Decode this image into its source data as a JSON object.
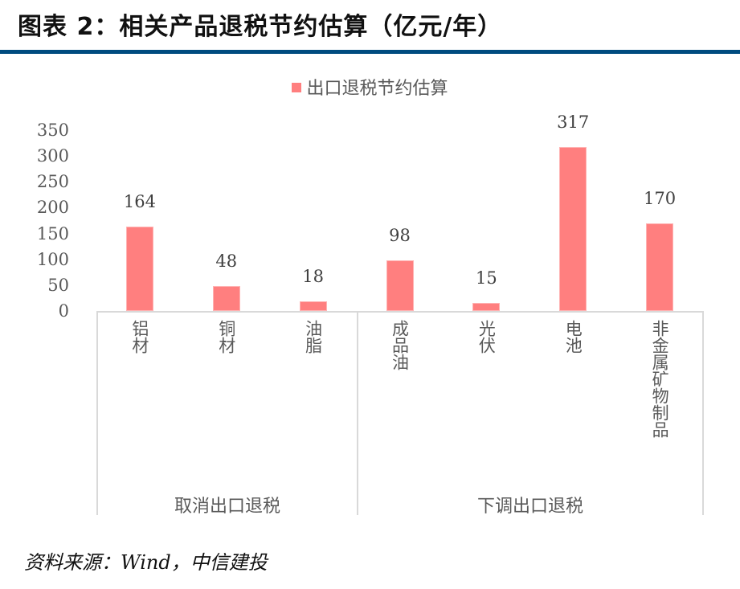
{
  "header": {
    "title": "图表 2：相关产品退税节约估算（亿元/年）",
    "rule_color": "#004b7f"
  },
  "legend": {
    "label": "出口退税节约估算",
    "color": "#ff7f7f"
  },
  "y_axis": {
    "ticks": [
      "350",
      "300",
      "250",
      "200",
      "150",
      "100",
      "50",
      "0"
    ]
  },
  "categories": [
    {
      "label": "铝材",
      "value": 164,
      "value_label": "164"
    },
    {
      "label": "铜材",
      "value": 48,
      "value_label": "48"
    },
    {
      "label": "油脂",
      "value": 18,
      "value_label": "18"
    },
    {
      "label": "成品油",
      "value": 98,
      "value_label": "98"
    },
    {
      "label": "光伏",
      "value": 15,
      "value_label": "15"
    },
    {
      "label": "电池",
      "value": 317,
      "value_label": "317"
    },
    {
      "label": "非金属矿物制品",
      "value": 170,
      "value_label": "170"
    }
  ],
  "groups": [
    {
      "label": "取消出口退税"
    },
    {
      "label": "下调出口退税"
    }
  ],
  "source": "资料来源：Wind，中信建投",
  "chart_data": {
    "type": "bar",
    "title": "相关产品退税节约估算（亿元/年）",
    "categories": [
      "铝材",
      "铜材",
      "油脂",
      "成品油",
      "光伏",
      "电池",
      "非金属矿物制品"
    ],
    "groups": [
      {
        "name": "取消出口退税",
        "categories": [
          "铝材",
          "铜材",
          "油脂"
        ]
      },
      {
        "name": "下调出口退税",
        "categories": [
          "成品油",
          "光伏",
          "电池",
          "非金属矿物制品"
        ]
      }
    ],
    "series": [
      {
        "name": "出口退税节约估算",
        "values": [
          164,
          48,
          18,
          98,
          15,
          317,
          170
        ],
        "color": "#ff7f7f"
      }
    ],
    "xlabel": "",
    "ylabel": "",
    "ylim": [
      0,
      350
    ],
    "yticks": [
      0,
      50,
      100,
      150,
      200,
      250,
      300,
      350
    ],
    "grid": false,
    "legend_position": "top",
    "data_labels": true
  }
}
